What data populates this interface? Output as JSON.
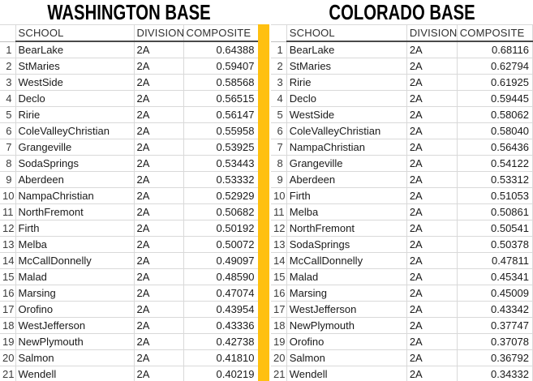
{
  "colors": {
    "separator_bar": "#FFC010",
    "gridline": "#d9d9d9",
    "header_underline": "#4a4a4a"
  },
  "tables": [
    {
      "title": "WASHINGTON BASE",
      "columns": [
        "SCHOOL",
        "DIVISION",
        "COMPOSITE"
      ],
      "rows": [
        {
          "rank": "1",
          "school": "BearLake",
          "division": "2A",
          "composite": "0.64388"
        },
        {
          "rank": "2",
          "school": "StMaries",
          "division": "2A",
          "composite": "0.59407"
        },
        {
          "rank": "3",
          "school": "WestSide",
          "division": "2A",
          "composite": "0.58568"
        },
        {
          "rank": "4",
          "school": "Declo",
          "division": "2A",
          "composite": "0.56515"
        },
        {
          "rank": "5",
          "school": "Ririe",
          "division": "2A",
          "composite": "0.56147"
        },
        {
          "rank": "6",
          "school": "ColeValleyChristian",
          "division": "2A",
          "composite": "0.55958"
        },
        {
          "rank": "7",
          "school": "Grangeville",
          "division": "2A",
          "composite": "0.53925"
        },
        {
          "rank": "8",
          "school": "SodaSprings",
          "division": "2A",
          "composite": "0.53443"
        },
        {
          "rank": "9",
          "school": "Aberdeen",
          "division": "2A",
          "composite": "0.53332"
        },
        {
          "rank": "10",
          "school": "NampaChristian",
          "division": "2A",
          "composite": "0.52929"
        },
        {
          "rank": "11",
          "school": "NorthFremont",
          "division": "2A",
          "composite": "0.50682"
        },
        {
          "rank": "12",
          "school": "Firth",
          "division": "2A",
          "composite": "0.50192"
        },
        {
          "rank": "13",
          "school": "Melba",
          "division": "2A",
          "composite": "0.50072"
        },
        {
          "rank": "14",
          "school": "McCallDonnelly",
          "division": "2A",
          "composite": "0.49097"
        },
        {
          "rank": "15",
          "school": "Malad",
          "division": "2A",
          "composite": "0.48590"
        },
        {
          "rank": "16",
          "school": "Marsing",
          "division": "2A",
          "composite": "0.47074"
        },
        {
          "rank": "17",
          "school": "Orofino",
          "division": "2A",
          "composite": "0.43954"
        },
        {
          "rank": "18",
          "school": "WestJefferson",
          "division": "2A",
          "composite": "0.43336"
        },
        {
          "rank": "19",
          "school": "NewPlymouth",
          "division": "2A",
          "composite": "0.42738"
        },
        {
          "rank": "20",
          "school": "Salmon",
          "division": "2A",
          "composite": "0.41810"
        },
        {
          "rank": "21",
          "school": "Wendell",
          "division": "2A",
          "composite": "0.40219"
        }
      ]
    },
    {
      "title": "COLORADO BASE",
      "columns": [
        "SCHOOL",
        "DIVISION",
        "COMPOSITE"
      ],
      "rows": [
        {
          "rank": "1",
          "school": "BearLake",
          "division": "2A",
          "composite": "0.68116"
        },
        {
          "rank": "2",
          "school": "StMaries",
          "division": "2A",
          "composite": "0.62794"
        },
        {
          "rank": "3",
          "school": "Ririe",
          "division": "2A",
          "composite": "0.61925"
        },
        {
          "rank": "4",
          "school": "Declo",
          "division": "2A",
          "composite": "0.59445"
        },
        {
          "rank": "5",
          "school": "WestSide",
          "division": "2A",
          "composite": "0.58062"
        },
        {
          "rank": "6",
          "school": "ColeValleyChristian",
          "division": "2A",
          "composite": "0.58040"
        },
        {
          "rank": "7",
          "school": "NampaChristian",
          "division": "2A",
          "composite": "0.56436"
        },
        {
          "rank": "8",
          "school": "Grangeville",
          "division": "2A",
          "composite": "0.54122"
        },
        {
          "rank": "9",
          "school": "Aberdeen",
          "division": "2A",
          "composite": "0.53312"
        },
        {
          "rank": "10",
          "school": "Firth",
          "division": "2A",
          "composite": "0.51053"
        },
        {
          "rank": "11",
          "school": "Melba",
          "division": "2A",
          "composite": "0.50861"
        },
        {
          "rank": "12",
          "school": "NorthFremont",
          "division": "2A",
          "composite": "0.50541"
        },
        {
          "rank": "13",
          "school": "SodaSprings",
          "division": "2A",
          "composite": "0.50378"
        },
        {
          "rank": "14",
          "school": "McCallDonnelly",
          "division": "2A",
          "composite": "0.47811"
        },
        {
          "rank": "15",
          "school": "Malad",
          "division": "2A",
          "composite": "0.45341"
        },
        {
          "rank": "16",
          "school": "Marsing",
          "division": "2A",
          "composite": "0.45009"
        },
        {
          "rank": "17",
          "school": "WestJefferson",
          "division": "2A",
          "composite": "0.43342"
        },
        {
          "rank": "18",
          "school": "NewPlymouth",
          "division": "2A",
          "composite": "0.37747"
        },
        {
          "rank": "19",
          "school": "Orofino",
          "division": "2A",
          "composite": "0.37078"
        },
        {
          "rank": "20",
          "school": "Salmon",
          "division": "2A",
          "composite": "0.36792"
        },
        {
          "rank": "21",
          "school": "Wendell",
          "division": "2A",
          "composite": "0.34332"
        }
      ]
    }
  ]
}
